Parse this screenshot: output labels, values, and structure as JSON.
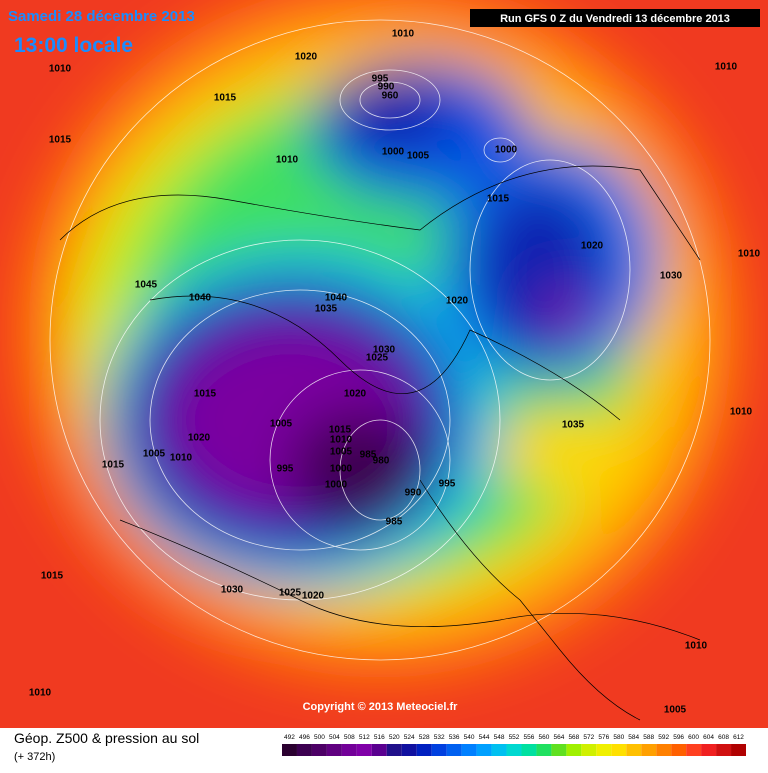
{
  "header": {
    "date": "Samedi 28 décembre 2013",
    "time": "13:00 locale",
    "run": "Run GFS 0 Z du Vendredi 13 décembre 2013"
  },
  "map": {
    "copyright": "Copyright © 2013 Meteociel.fr",
    "isobar_labels": [
      "1010",
      "1020",
      "1010",
      "995",
      "990",
      "960",
      "1010",
      "1015",
      "1015",
      "1010",
      "1000",
      "1005",
      "1000",
      "1015",
      "1020",
      "1010",
      "1030",
      "1045",
      "1040",
      "1040",
      "1035",
      "1020",
      "1030",
      "1025",
      "1015",
      "1020",
      "1010",
      "1035",
      "1005",
      "1015",
      "1010",
      "1020",
      "985",
      "1005",
      "1005",
      "1010",
      "1015",
      "995",
      "1000",
      "980",
      "995",
      "1000",
      "990",
      "985",
      "1015",
      "1030",
      "1025",
      "1020",
      "1010",
      "1010",
      "1005"
    ]
  },
  "footer": {
    "title": "Géop. Z500 & pression au sol",
    "range": "(+ 372h)"
  },
  "legend": {
    "values": [
      492,
      496,
      500,
      504,
      508,
      512,
      516,
      520,
      524,
      528,
      532,
      536,
      540,
      544,
      548,
      552,
      556,
      560,
      564,
      568,
      572,
      576,
      580,
      584,
      588,
      592,
      596,
      600,
      604,
      608,
      612
    ],
    "colors": [
      "#2b0030",
      "#3c0050",
      "#4d0066",
      "#600080",
      "#730099",
      "#8000a8",
      "#5a0090",
      "#20108a",
      "#1010a0",
      "#0020c0",
      "#0040e0",
      "#0060f0",
      "#0080ff",
      "#00a0ff",
      "#00c0f0",
      "#00d8d0",
      "#00e0a0",
      "#20e060",
      "#60e020",
      "#a0f000",
      "#d0f000",
      "#f0f000",
      "#ffe000",
      "#ffc000",
      "#ffa000",
      "#ff8000",
      "#ff6000",
      "#ff4020",
      "#f02020",
      "#d01010",
      "#b00000"
    ]
  }
}
